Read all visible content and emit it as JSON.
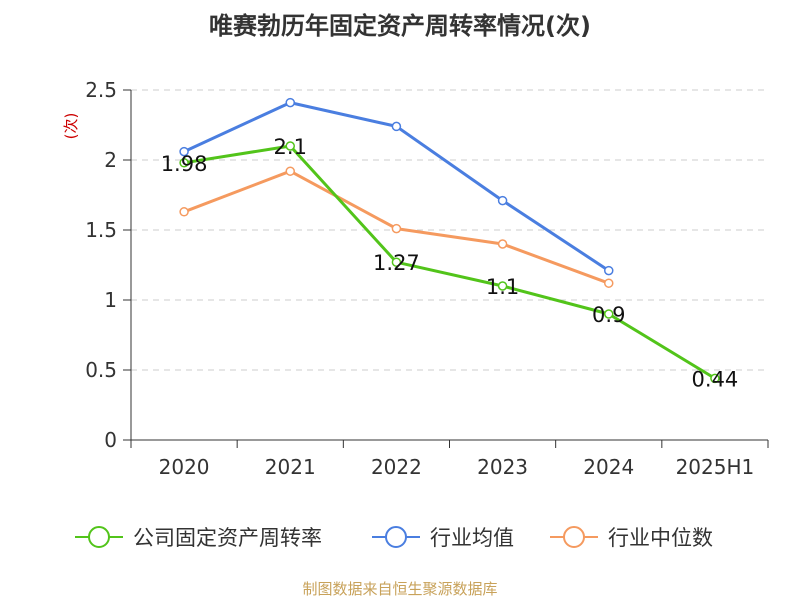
{
  "chart_data": {
    "type": "line",
    "title": "唯赛勃历年固定资产周转率情况(次)",
    "ylabel": "(次)",
    "ylim": [
      0,
      2.5
    ],
    "yticks": [
      0,
      0.5,
      1,
      1.5,
      2,
      2.5
    ],
    "ytick_labels": [
      "0",
      "0.5",
      "1",
      "1.5",
      "2",
      "2.5"
    ],
    "categories": [
      "2020",
      "2021",
      "2022",
      "2023",
      "2024",
      "2025H1"
    ],
    "grid": true,
    "legend_position": "bottom",
    "series": [
      {
        "name": "公司固定资产周转率",
        "color": "#52c41a",
        "values": [
          1.98,
          2.1,
          1.27,
          1.1,
          0.9,
          0.44
        ],
        "labels": [
          "1.98",
          "2.1",
          "1.27",
          "1.1",
          "0.9",
          "0.44"
        ]
      },
      {
        "name": "行业均值",
        "color": "#4a7ee0",
        "values": [
          2.06,
          2.41,
          2.24,
          1.71,
          1.21,
          null
        ]
      },
      {
        "name": "行业中位数",
        "color": "#f59a5f",
        "values": [
          1.63,
          1.92,
          1.51,
          1.4,
          1.12,
          null
        ]
      }
    ]
  },
  "source_note": "制图数据来自恒生聚源数据库",
  "colors": {
    "ylabel": "#cc0000",
    "axis": "#333333",
    "grid": "#cccccc"
  }
}
